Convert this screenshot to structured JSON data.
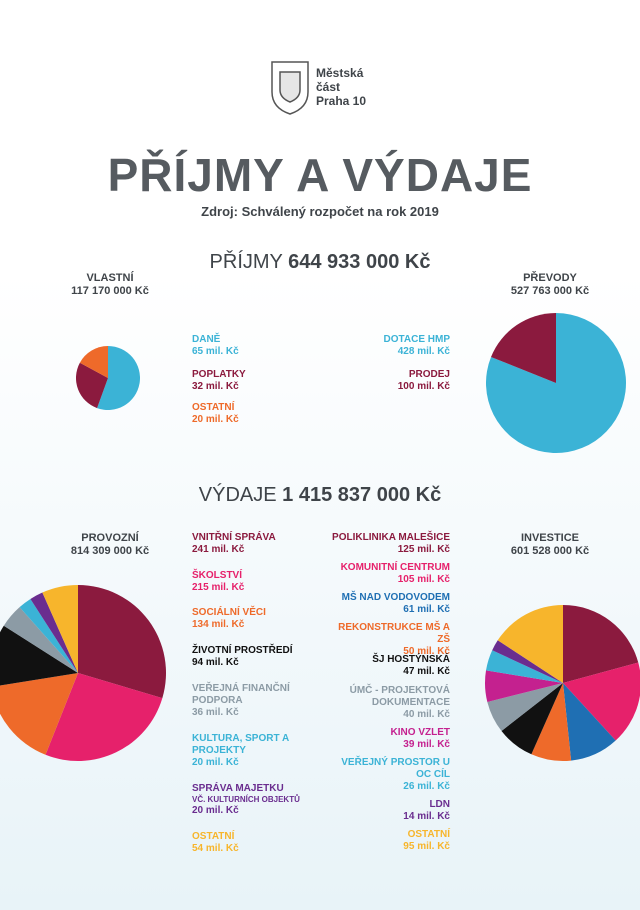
{
  "header": {
    "logo": [
      "Městská",
      "část",
      "Praha 10"
    ],
    "title": "PŘÍJMY A VÝDAJE",
    "source": "Zdroj: Schválený rozpočet na rok 2019"
  },
  "sections": {
    "income": {
      "label": "PŘÍJMY",
      "total": "644 933 000 Kč"
    },
    "expenses": {
      "label": "VÝDAJE",
      "total": "1 415 837 000 Kč"
    }
  },
  "chart_data": [
    {
      "type": "pie",
      "title": "VLASTNÍ",
      "subtitle": "117 170 000 Kč",
      "categories": [
        "DANĚ",
        "POPLATKY",
        "OSTATNÍ"
      ],
      "values": [
        65,
        32,
        20
      ],
      "value_labels": [
        "65 mil. Kč",
        "32 mil. Kč",
        "20 mil. Kč"
      ],
      "colors": [
        "#3bb3d6",
        "#8b1a3e",
        "#ee6a2a"
      ]
    },
    {
      "type": "pie",
      "title": "PŘEVODY",
      "subtitle": "527 763 000 Kč",
      "categories": [
        "DOTACE HMP",
        "PRODEJ"
      ],
      "values": [
        428,
        100
      ],
      "value_labels": [
        "428 mil. Kč",
        "100 mil. Kč"
      ],
      "colors": [
        "#3bb3d6",
        "#8b1a3e"
      ]
    },
    {
      "type": "pie",
      "title": "PROVOZNÍ",
      "subtitle": "814 309 000 Kč",
      "categories": [
        "VNITŘNÍ SPRÁVA",
        "ŠKOLSTVÍ",
        "SOCIÁLNÍ VĚCI",
        "ŽIVOTNÍ PROSTŘEDÍ",
        "VEŘEJNÁ FINANČNÍ PODPORA",
        "KULTURA, SPORT A PROJEKTY",
        "SPRÁVA MAJETKU",
        "OSTATNÍ"
      ],
      "category_notes": {
        "6": "VČ. KULTURNÍCH OBJEKTŮ"
      },
      "values": [
        241,
        215,
        134,
        94,
        36,
        20,
        20,
        54
      ],
      "value_labels": [
        "241 mil. Kč",
        "215 mil. Kč",
        "134 mil. Kč",
        "94 mil. Kč",
        "36 mil. Kč",
        "20 mil. Kč",
        "20 mil. Kč",
        "54 mil. Kč"
      ],
      "colors": [
        "#8b1a3e",
        "#e6216b",
        "#ee6a2a",
        "#111111",
        "#8c9ba5",
        "#3bb3d6",
        "#6a2d8f",
        "#f7b52c"
      ]
    },
    {
      "type": "pie",
      "title": "INVESTICE",
      "subtitle": "601 528 000 Kč",
      "categories": [
        "POLIKLINIKA MALEŠICE",
        "KOMUNITNÍ CENTRUM",
        "MŠ NAD VODOVODEM",
        "REKONSTRUKCE MŠ A ZŠ",
        "ŠJ HOSTÝNSKÁ",
        "ÚMČ - PROJEKTOVÁ DOKUMENTACE",
        "KINO VZLET",
        "VEŘEJNÝ PROSTOR U OC CÍL",
        "LDN",
        "OSTATNÍ"
      ],
      "values": [
        125,
        105,
        61,
        50,
        47,
        40,
        39,
        26,
        14,
        95
      ],
      "value_labels": [
        "125 mil. Kč",
        "105 mil. Kč",
        "61 mil. Kč",
        "50 mil. Kč",
        "47 mil. Kč",
        "40 mil. Kč",
        "39 mil. Kč",
        "26 mil. Kč",
        "14 mil. Kč",
        "95 mil. Kč"
      ],
      "colors": [
        "#8b1a3e",
        "#e6216b",
        "#1f6fb3",
        "#ee6a2a",
        "#111111",
        "#8c9ba5",
        "#c4218f",
        "#3bb3d6",
        "#6a2d8f",
        "#f7b52c"
      ]
    }
  ]
}
